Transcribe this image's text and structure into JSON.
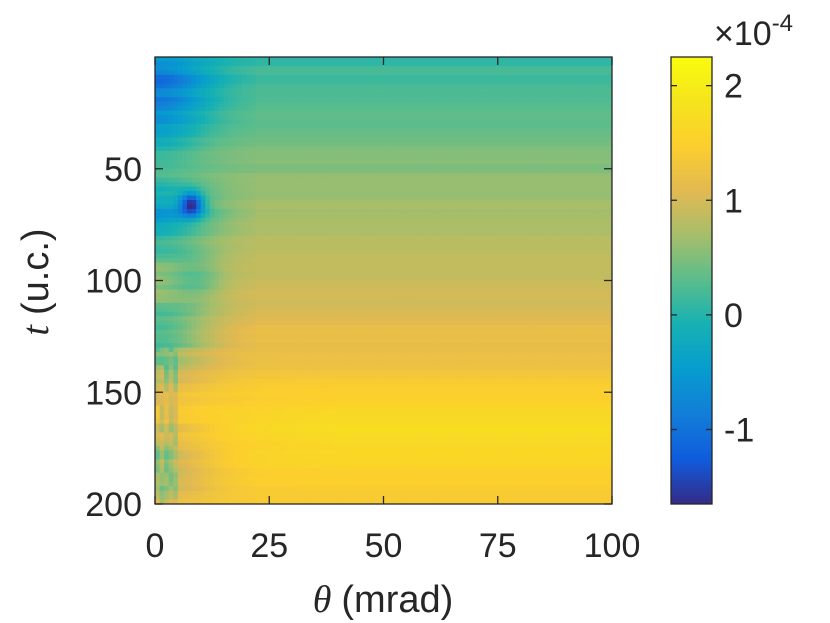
{
  "chart_data": {
    "type": "heatmap",
    "title": "",
    "xlabel": "(mrad)",
    "xlabel_symbol": "θ",
    "ylabel": "(u.c.)",
    "ylabel_symbol": "t",
    "xlim": [
      0,
      100
    ],
    "ylim": [
      200,
      0
    ],
    "y_axis_reversed": true,
    "x_ticks": [
      0,
      25,
      50,
      75,
      100
    ],
    "x_tick_labels": [
      "0",
      "25",
      "50",
      "75",
      "100"
    ],
    "y_ticks": [
      50,
      100,
      150,
      200
    ],
    "y_tick_labels": [
      "50",
      "100",
      "150",
      "200"
    ],
    "colorbar": {
      "colormap": "parula",
      "range": [
        -1.65,
        2.25
      ],
      "ticks": [
        -1,
        0,
        1,
        2
      ],
      "tick_labels": [
        "-1",
        "0",
        "1",
        "2"
      ],
      "multiplier_base": "×10",
      "multiplier_exponent": "-4"
    },
    "z_unit_scale": 0.0001,
    "description_of_field": {
      "background_level_at_small_t": 0.1,
      "gradient_along_t_to": 1.45,
      "hot_band_t_range": [
        150,
        185
      ],
      "hot_band_level": 1.55,
      "cold_spot": {
        "theta": 8,
        "t": 66,
        "value": -1.65
      }
    }
  }
}
